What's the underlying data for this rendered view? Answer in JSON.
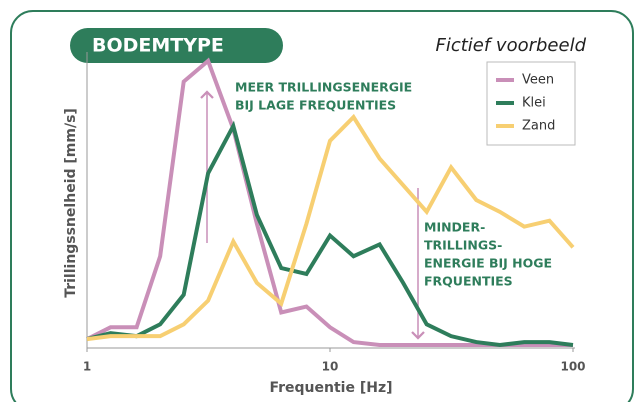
{
  "chart_data": {
    "type": "line",
    "title": "BODEMTYPE",
    "subtitle": "Fictief voorbeeld",
    "x_label": "Frequentie [Hz]",
    "y_label": "Trillingssnelheid [mm/s]",
    "x": [
      1,
      1.25,
      1.6,
      2,
      2.5,
      3.15,
      4,
      5,
      6.3,
      8,
      10,
      12.5,
      16,
      20,
      25,
      31.5,
      40,
      50,
      63,
      80,
      100
    ],
    "xlim": [
      1,
      100
    ],
    "xticks": [
      1,
      10,
      100
    ],
    "xscale": "log",
    "ylim": [
      0,
      100
    ],
    "legend": "upper right",
    "series": [
      {
        "name": "Veen",
        "color": "#c98fb8",
        "values": [
          3,
          7,
          7,
          31,
          90,
          97,
          74,
          42,
          12,
          14,
          7,
          2,
          1,
          1,
          1,
          1,
          1,
          1,
          1,
          1,
          1
        ]
      },
      {
        "name": "Klei",
        "color": "#2e7d5b",
        "values": [
          3,
          5,
          4,
          8,
          18,
          59,
          75,
          45,
          27,
          25,
          38,
          31,
          35,
          22,
          8,
          4,
          2,
          1,
          2,
          2,
          1
        ]
      },
      {
        "name": "Zand",
        "color": "#f7cf72",
        "values": [
          3,
          4,
          4,
          4,
          8,
          16,
          36,
          22,
          15,
          42,
          70,
          78,
          64,
          55,
          46,
          61,
          50,
          46,
          41,
          43,
          34
        ]
      }
    ],
    "annotations": [
      {
        "lines": [
          "MEER TRILLINGSENERGIE",
          "BIJ LAGE FREQUENTIES"
        ]
      },
      {
        "lines": [
          "MINDER-",
          "TRILLINGS-",
          "ENERGIE BIJ HOGE",
          "FRQUENTIES"
        ]
      }
    ]
  }
}
